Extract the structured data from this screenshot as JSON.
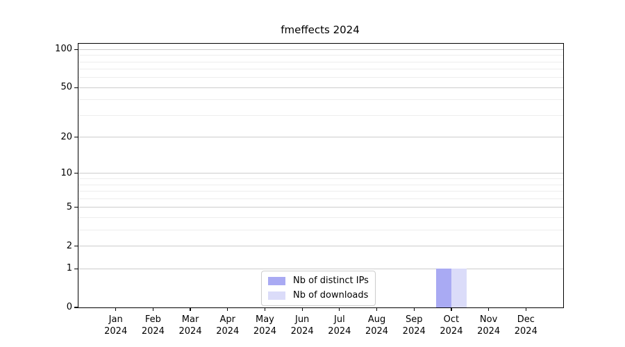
{
  "figure": {
    "title": "fmeffects 2024"
  },
  "chart_data": {
    "type": "bar",
    "title": "fmeffects 2024",
    "x_tick_year": "2024",
    "categories": [
      "Jan",
      "Feb",
      "Mar",
      "Apr",
      "May",
      "Jun",
      "Jul",
      "Aug",
      "Sep",
      "Oct",
      "Nov",
      "Dec"
    ],
    "series": [
      {
        "name": "Nb of distinct IPs",
        "color": "#a9aaf3",
        "values": [
          0,
          0,
          0,
          0,
          0,
          0,
          0,
          0,
          0,
          1,
          0,
          0
        ]
      },
      {
        "name": "Nb of downloads",
        "color": "#dbdcf9",
        "values": [
          0,
          0,
          0,
          0,
          0,
          0,
          0,
          0,
          0,
          1,
          0,
          0
        ]
      }
    ],
    "yscale": "log1p",
    "ylim": [
      0,
      111
    ],
    "y_major_ticks": [
      0,
      1,
      2,
      5,
      10,
      20,
      50,
      100
    ],
    "y_tick_labels": [
      "0",
      "1",
      "2",
      "5",
      "10",
      "20",
      "50",
      "100"
    ],
    "y_minor_gridlines": [
      3,
      4,
      6,
      7,
      8,
      9,
      30,
      40,
      60,
      70,
      80,
      90
    ],
    "grid": true,
    "legend_position": "lower center"
  },
  "colors": {
    "axis": "#000000",
    "major_grid": "#cccccc",
    "minor_grid": "#ededed",
    "legend_border": "#cccccc",
    "background": "#ffffff"
  }
}
